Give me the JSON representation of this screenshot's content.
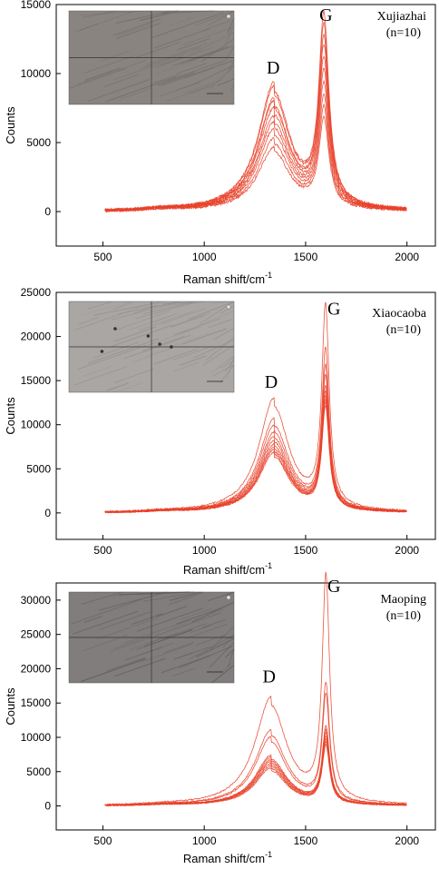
{
  "chart_data": [
    {
      "type": "line",
      "site": "Xujiazhai",
      "n_label": "(n=10)",
      "xlabel": "Raman shift/cm",
      "xlabel_sup": "-1",
      "ylabel": "Counts",
      "xlim": [
        270,
        2140
      ],
      "ylim": [
        -2500,
        15000
      ],
      "x_ticks": [
        500,
        1000,
        1500,
        2000
      ],
      "y_ticks": [
        0,
        5000,
        10000,
        15000
      ],
      "peak_labels": [
        {
          "text": "D",
          "x": 1340,
          "y": 10000
        },
        {
          "text": "G",
          "x": 1600,
          "y": 13800
        }
      ],
      "series_shape": {
        "d_center": 1345,
        "d_width": 95,
        "g_center": 1590,
        "g_width": 30
      },
      "series": [
        {
          "d_peak": 9200,
          "g_peak": 13400
        },
        {
          "d_peak": 8900,
          "g_peak": 12600
        },
        {
          "d_peak": 8100,
          "g_peak": 11800
        },
        {
          "d_peak": 7900,
          "g_peak": 11200
        },
        {
          "d_peak": 7400,
          "g_peak": 10400
        },
        {
          "d_peak": 6800,
          "g_peak": 9600
        },
        {
          "d_peak": 6400,
          "g_peak": 8700
        },
        {
          "d_peak": 5900,
          "g_peak": 7800
        },
        {
          "d_peak": 5200,
          "g_peak": 7100
        },
        {
          "d_peak": 4600,
          "g_peak": 6300
        }
      ],
      "inset": {
        "tone": "#8a8480",
        "grain": "#6e6864"
      }
    },
    {
      "type": "line",
      "site": "Xiaocaoba",
      "n_label": "(n=10)",
      "xlabel": "Raman shift/cm",
      "xlabel_sup": "-1",
      "ylabel": "Counts",
      "xlim": [
        270,
        2140
      ],
      "ylim": [
        -3000,
        25000
      ],
      "x_ticks": [
        500,
        1000,
        1500,
        2000
      ],
      "y_ticks": [
        0,
        5000,
        10000,
        15000,
        20000,
        25000
      ],
      "peak_labels": [
        {
          "text": "D",
          "x": 1330,
          "y": 14200
        },
        {
          "text": "G",
          "x": 1640,
          "y": 22500
        }
      ],
      "series_shape": {
        "d_center": 1345,
        "d_width": 90,
        "g_center": 1598,
        "g_width": 22
      },
      "series": [
        {
          "d_peak": 12900,
          "g_peak": 22600
        },
        {
          "d_peak": 10600,
          "g_peak": 17700
        },
        {
          "d_peak": 9800,
          "g_peak": 15800
        },
        {
          "d_peak": 9100,
          "g_peak": 14800
        },
        {
          "d_peak": 8600,
          "g_peak": 13600
        },
        {
          "d_peak": 8100,
          "g_peak": 13000
        },
        {
          "d_peak": 7700,
          "g_peak": 12500
        },
        {
          "d_peak": 7400,
          "g_peak": 12200
        },
        {
          "d_peak": 7100,
          "g_peak": 11900
        },
        {
          "d_peak": 6800,
          "g_peak": 11500
        }
      ],
      "inset": {
        "tone": "#a9a6a4",
        "grain": "#8c8886"
      }
    },
    {
      "type": "line",
      "site": "Maoping",
      "n_label": "(n=10)",
      "xlabel": "Raman shift/cm",
      "xlabel_sup": "-1",
      "ylabel": "Counts",
      "xlim": [
        270,
        2140
      ],
      "ylim": [
        -3500,
        32500
      ],
      "x_ticks": [
        500,
        1000,
        1500,
        2000
      ],
      "y_ticks": [
        0,
        5000,
        10000,
        15000,
        20000,
        25000,
        30000
      ],
      "peak_labels": [
        {
          "text": "D",
          "x": 1320,
          "y": 18000
        },
        {
          "text": "G",
          "x": 1640,
          "y": 31200
        }
      ],
      "series_shape": {
        "d_center": 1330,
        "d_width": 95,
        "g_center": 1600,
        "g_width": 22
      },
      "series": [
        {
          "d_peak": 15700,
          "g_peak": 32500
        },
        {
          "d_peak": 11000,
          "g_peak": 17000
        },
        {
          "d_peak": 10000,
          "g_peak": 15500
        },
        {
          "d_peak": 7300,
          "g_peak": 11000
        },
        {
          "d_peak": 7000,
          "g_peak": 10500
        },
        {
          "d_peak": 6700,
          "g_peak": 10000
        },
        {
          "d_peak": 6400,
          "g_peak": 9600
        },
        {
          "d_peak": 6100,
          "g_peak": 9200
        },
        {
          "d_peak": 5800,
          "g_peak": 8800
        },
        {
          "d_peak": 5500,
          "g_peak": 8400
        }
      ],
      "inset": {
        "tone": "#807d7c",
        "grain": "#5e5a59"
      }
    }
  ],
  "colors": {
    "line": "#e8412a",
    "axis": "#000000"
  }
}
